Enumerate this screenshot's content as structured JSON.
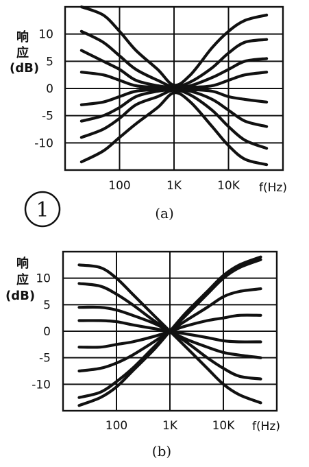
{
  "figure_number": "1",
  "chart_data": [
    {
      "type": "line",
      "panel_label": "(a)",
      "ylabel_line1": "响",
      "ylabel_line2": "应",
      "ylabel_unit": "(dB)",
      "x_unit": "f(Hz)",
      "x_scale": "log",
      "xlim": [
        10,
        100000
      ],
      "ylim": [
        -15,
        15
      ],
      "x_ticks": [
        {
          "value": 100,
          "label": "100"
        },
        {
          "value": 1000,
          "label": "1K"
        },
        {
          "value": 10000,
          "label": "10K"
        }
      ],
      "y_ticks": [
        {
          "value": 10,
          "label": "10"
        },
        {
          "value": 5,
          "label": "5"
        },
        {
          "value": 0,
          "label": "0"
        },
        {
          "value": -5,
          "label": "-5"
        },
        {
          "value": -10,
          "label": "-10"
        }
      ],
      "grid": true,
      "series": [
        {
          "x": [
            20,
            50,
            100,
            200,
            500,
            1000,
            2000,
            5000,
            10000,
            20000,
            50000
          ],
          "y": [
            15,
            13.5,
            10.5,
            7,
            3.5,
            0.6,
            2.5,
            7.5,
            10.5,
            12.5,
            13.5
          ]
        },
        {
          "x": [
            20,
            50,
            100,
            200,
            500,
            1000,
            2000,
            5000,
            10000,
            20000,
            50000
          ],
          "y": [
            10.5,
            8.5,
            6,
            3.5,
            1.5,
            0.3,
            1.2,
            3.8,
            6.5,
            8.5,
            9
          ]
        },
        {
          "x": [
            20,
            50,
            100,
            200,
            500,
            1000,
            2000,
            5000,
            10000,
            20000,
            50000
          ],
          "y": [
            7,
            5,
            3.5,
            1.5,
            0.5,
            0.2,
            0.5,
            2,
            3.5,
            5,
            5.5
          ]
        },
        {
          "x": [
            20,
            50,
            100,
            200,
            500,
            1000,
            2000,
            5000,
            10000,
            20000,
            50000
          ],
          "y": [
            3,
            2.5,
            1.5,
            0.5,
            0.2,
            0.1,
            0.2,
            0.5,
            1.5,
            2.5,
            3
          ]
        },
        {
          "x": [
            20,
            50,
            100,
            200,
            500,
            1000,
            2000,
            5000,
            10000,
            20000,
            50000
          ],
          "y": [
            -3,
            -2.5,
            -1.5,
            -0.5,
            -0.2,
            -0.1,
            -0.2,
            -0.5,
            -1.5,
            -2,
            -2.5
          ]
        },
        {
          "x": [
            20,
            50,
            100,
            200,
            500,
            1000,
            2000,
            5000,
            10000,
            20000,
            50000
          ],
          "y": [
            -6,
            -5,
            -3.5,
            -1.5,
            -0.5,
            -0.2,
            -0.5,
            -2,
            -4,
            -6,
            -7
          ]
        },
        {
          "x": [
            20,
            50,
            100,
            200,
            500,
            1000,
            2000,
            5000,
            10000,
            20000,
            50000
          ],
          "y": [
            -9,
            -7.5,
            -5.5,
            -3,
            -1.5,
            -0.3,
            -1.2,
            -4,
            -7,
            -9.5,
            -11
          ]
        },
        {
          "x": [
            20,
            50,
            100,
            200,
            500,
            1000,
            2000,
            5000,
            10000,
            20000,
            50000
          ],
          "y": [
            -13.5,
            -11.5,
            -9,
            -6.5,
            -3.5,
            -0.8,
            -2.5,
            -7,
            -10.5,
            -13,
            -14
          ]
        }
      ]
    },
    {
      "type": "line",
      "panel_label": "(b)",
      "ylabel_line1": "响",
      "ylabel_line2": "应",
      "ylabel_unit": "(dB)",
      "x_unit": "f(Hz)",
      "x_scale": "log",
      "xlim": [
        10,
        100000
      ],
      "ylim": [
        -15,
        15
      ],
      "x_ticks": [
        {
          "value": 100,
          "label": "100"
        },
        {
          "value": 1000,
          "label": "1K"
        },
        {
          "value": 10000,
          "label": "10K"
        }
      ],
      "y_ticks": [
        {
          "value": 10,
          "label": "10"
        },
        {
          "value": 5,
          "label": "5"
        },
        {
          "value": 0,
          "label": "0"
        },
        {
          "value": -5,
          "label": "-5"
        },
        {
          "value": -10,
          "label": "-10"
        }
      ],
      "grid": true,
      "series": [
        {
          "x": [
            20,
            50,
            100,
            200,
            500,
            1000,
            2000,
            5000,
            10000,
            20000,
            50000
          ],
          "y": [
            12.5,
            12,
            10,
            7,
            3,
            0,
            -3,
            -7,
            -10,
            -12,
            -13.5
          ]
        },
        {
          "x": [
            20,
            50,
            100,
            200,
            500,
            1000,
            2000,
            5000,
            10000,
            20000,
            50000
          ],
          "y": [
            9,
            8.5,
            7,
            5,
            2,
            0,
            -2,
            -5,
            -7,
            -8.5,
            -9
          ]
        },
        {
          "x": [
            20,
            50,
            100,
            200,
            500,
            1000,
            2000,
            5000,
            10000,
            20000,
            50000
          ],
          "y": [
            4.5,
            4.5,
            4,
            3,
            1.5,
            0,
            -1.5,
            -3,
            -4,
            -4.5,
            -5
          ]
        },
        {
          "x": [
            20,
            50,
            100,
            200,
            500,
            1000,
            2000,
            5000,
            10000,
            20000,
            50000
          ],
          "y": [
            2,
            2,
            1.8,
            1.2,
            0.5,
            0,
            -0.5,
            -1.2,
            -1.8,
            -2,
            -2
          ]
        },
        {
          "x": [
            20,
            50,
            100,
            200,
            500,
            1000,
            2000,
            5000,
            10000,
            20000,
            50000
          ],
          "y": [
            -3,
            -3,
            -2.5,
            -2,
            -1,
            0,
            1,
            2,
            2.5,
            3,
            3
          ]
        },
        {
          "x": [
            20,
            50,
            100,
            200,
            500,
            1000,
            2000,
            5000,
            10000,
            20000,
            50000
          ],
          "y": [
            -7.5,
            -7,
            -6,
            -4.5,
            -2,
            0,
            2,
            4.5,
            6.5,
            7.5,
            8
          ]
        },
        {
          "x": [
            20,
            50,
            100,
            200,
            500,
            1000,
            2000,
            5000,
            10000,
            20000,
            50000
          ],
          "y": [
            -12.5,
            -11.5,
            -9.5,
            -7,
            -3,
            0,
            3,
            7,
            10,
            12,
            13.5
          ]
        },
        {
          "x": [
            20,
            50,
            100,
            200,
            500,
            1000,
            2000,
            5000,
            10000,
            20000,
            50000
          ],
          "y": [
            -14,
            -12.5,
            -10.5,
            -7.5,
            -3.5,
            0,
            3.5,
            7.5,
            10.5,
            12.5,
            14
          ]
        }
      ]
    }
  ]
}
